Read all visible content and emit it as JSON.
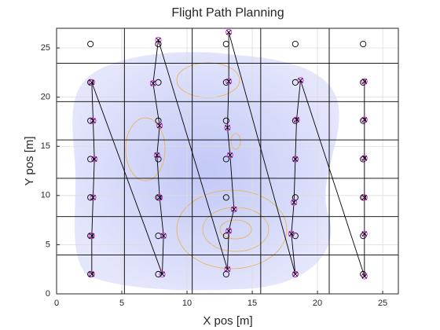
{
  "chart_data": {
    "type": "scatter",
    "title": "Flight Path Planning",
    "x_label": "X pos [m]",
    "y_label": "Y pos [m]",
    "xlim": [
      0,
      26.2
    ],
    "ylim": [
      0,
      27
    ],
    "xticks": [
      0,
      5,
      10,
      15,
      20,
      25
    ],
    "yticks": [
      0,
      5,
      10,
      15,
      20,
      25
    ],
    "grid": true,
    "grid_x": [
      2.6,
      7.8,
      13.0,
      18.3,
      23.5
    ],
    "grid_y": [
      2.0,
      5.9,
      9.8,
      13.7,
      17.6,
      21.5,
      25.4
    ],
    "grid_color": "#000000",
    "path_color": "#000000",
    "position_color": "#e020e0",
    "path_x": [
      2.7,
      2.7,
      2.8,
      2.9,
      2.8,
      2.7,
      8.1,
      8.2,
      7.9,
      7.7,
      7.9,
      7.4,
      7.8,
      13.1,
      13.2,
      13.6,
      13.3,
      13.1,
      13.2,
      13.2,
      18.3,
      18.0,
      18.2,
      18.3,
      18.4,
      18.7,
      23.6,
      23.6,
      23.6,
      23.6,
      23.6,
      23.6
    ],
    "path_y": [
      2.0,
      5.9,
      9.8,
      13.7,
      17.6,
      21.5,
      2.0,
      5.9,
      9.8,
      14.1,
      17.1,
      21.4,
      25.8,
      2.5,
      6.4,
      8.6,
      14.1,
      16.9,
      21.6,
      26.6,
      2.0,
      6.1,
      9.3,
      13.7,
      17.7,
      21.7,
      1.8,
      6.1,
      9.8,
      13.8,
      17.7,
      21.6
    ]
  }
}
